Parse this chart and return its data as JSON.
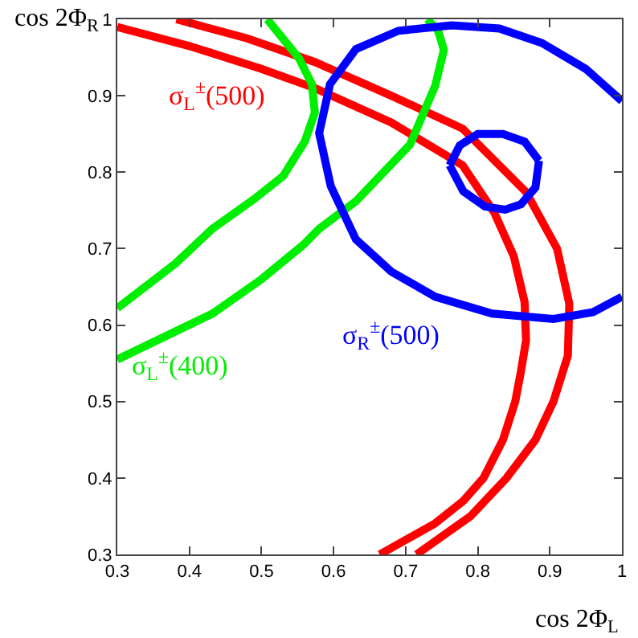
{
  "chart_data": {
    "type": "line",
    "xlabel": "cos 2Φ$_{L}$",
    "ylabel": "cos 2Φ$_{R}$",
    "xlim": [
      0.3,
      1
    ],
    "ylim": [
      0.3,
      1
    ],
    "xticks": [
      0.3,
      0.4,
      0.5,
      0.6,
      0.7,
      0.8,
      0.9,
      1
    ],
    "yticks": [
      0.3,
      0.4,
      0.5,
      0.6,
      0.7,
      0.8,
      0.9,
      1
    ],
    "legend": false,
    "marker": "none",
    "line_style": "solid",
    "series": [
      {
        "name": "σ$_{L}$$^{±}$(500)",
        "color": "#ff0000",
        "x": [
          0.3,
          0.4,
          0.5,
          0.574,
          0.68,
          0.779,
          0.823,
          0.85,
          0.865,
          0.867,
          0.86,
          0.852,
          0.835,
          0.808,
          0.78,
          0.74,
          0.664
        ],
        "values": [
          0.99,
          0.965,
          0.935,
          0.91,
          0.865,
          0.809,
          0.747,
          0.69,
          0.63,
          0.58,
          0.54,
          0.5,
          0.45,
          0.4,
          0.37,
          0.34,
          0.3
        ]
      },
      {
        "color": "#ff0000",
        "x": [
          0.382,
          0.48,
          0.574,
          0.68,
          0.779,
          0.867,
          0.91,
          0.927,
          0.925,
          0.905,
          0.88,
          0.84,
          0.79,
          0.715
        ],
        "values": [
          1.0,
          0.975,
          0.944,
          0.9,
          0.857,
          0.774,
          0.7,
          0.628,
          0.56,
          0.5,
          0.45,
          0.4,
          0.35,
          0.3
        ]
      },
      {
        "name": "σ$_{L}$$^{±}$(400)",
        "color": "#00ee00",
        "x": [
          0.3,
          0.38,
          0.432,
          0.49,
          0.53,
          0.56,
          0.574,
          0.57,
          0.552,
          0.508
        ],
        "values": [
          0.622,
          0.68,
          0.726,
          0.765,
          0.795,
          0.84,
          0.878,
          0.915,
          0.949,
          1.0
        ]
      },
      {
        "color": "#00ee00",
        "x": [
          0.3,
          0.432,
          0.5,
          0.558,
          0.58,
          0.631,
          0.706,
          0.741,
          0.753,
          0.745,
          0.73
        ],
        "values": [
          0.555,
          0.615,
          0.66,
          0.705,
          0.726,
          0.762,
          0.836,
          0.913,
          0.96,
          0.985,
          1.0
        ]
      },
      {
        "name": "σ$_{R}$$^{±}$(500)",
        "color": "#0000ff",
        "x": [
          1.0,
          0.95,
          0.889,
          0.83,
          0.764,
          0.69,
          0.631,
          0.595,
          0.58,
          0.596,
          0.631,
          0.68,
          0.741,
          0.82,
          0.905,
          0.96,
          1.0
        ],
        "values": [
          0.893,
          0.935,
          0.969,
          0.988,
          0.992,
          0.985,
          0.961,
          0.915,
          0.851,
          0.782,
          0.712,
          0.67,
          0.637,
          0.615,
          0.608,
          0.617,
          0.637
        ]
      },
      {
        "color": "#0000ff",
        "x": [
          0.761,
          0.775,
          0.8,
          0.835,
          0.865,
          0.885
        ],
        "values": [
          0.809,
          0.835,
          0.85,
          0.85,
          0.84,
          0.815
        ]
      },
      {
        "color": "#0000ff",
        "x": [
          0.761,
          0.78,
          0.81,
          0.838,
          0.86,
          0.88,
          0.885
        ],
        "values": [
          0.809,
          0.775,
          0.755,
          0.751,
          0.758,
          0.78,
          0.815
        ]
      }
    ]
  }
}
